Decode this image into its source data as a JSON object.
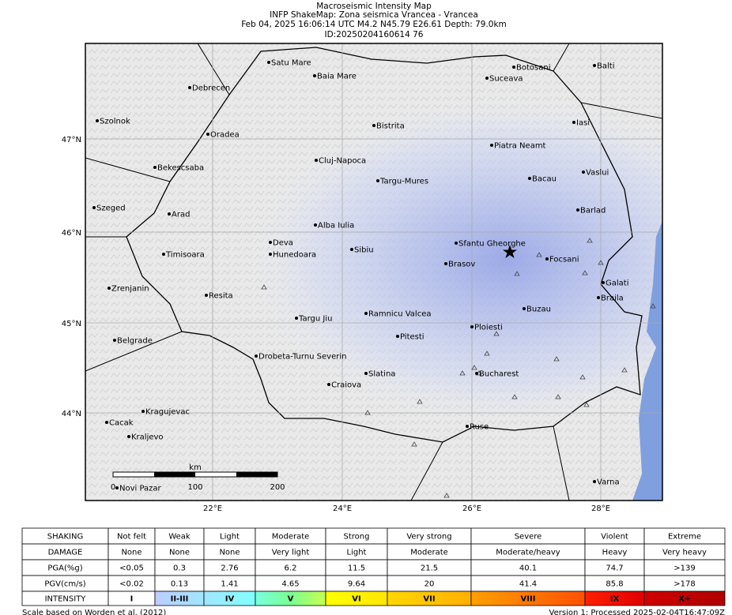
{
  "header": {
    "lines": [
      "Macroseismic Intensity Map",
      "INFP ShakeMap: Zona seismica Vrancea - Vrancea",
      "Feb 04, 2025 16:06:14 UTC M4.2 N45.79 E26.61 Depth: 79.0km",
      "ID:20250204160614 76"
    ]
  },
  "map": {
    "lat_labels": [
      "47°N",
      "46°N",
      "45°N",
      "44°N"
    ],
    "lon_labels": [
      "22°E",
      "24°E",
      "26°E",
      "28°E"
    ],
    "cities": [
      "Satu Mare",
      "Baia Mare",
      "Botosani",
      "Balti",
      "Debrecen",
      "Suceava",
      "Szolnok",
      "Bistrita",
      "Iasi",
      "Oradea",
      "Piatra Neamt",
      "Bekescsaba",
      "Cluj-Napoca",
      "Vaslui",
      "Targu-Mures",
      "Bacau",
      "Szeged",
      "Arad",
      "Barlad",
      "Alba Iulia",
      "Deva",
      "Sibiu",
      "Sfantu Gheorghe",
      "Timisoara",
      "Hunedoara",
      "Focsani",
      "Brasov",
      "Galati",
      "Zrenjanin",
      "Resita",
      "Braila",
      "Buzau",
      "Ramnicu Valcea",
      "Targu Jiu",
      "Ploiesti",
      "Pitesti",
      "Belgrade",
      "Drobeta-Turnu Severin",
      "Bucharest",
      "Slatina",
      "Craiova",
      "Kragujevac",
      "Cacak",
      "Ruse",
      "Kraljevo",
      "Novi Pazar",
      "Varna"
    ],
    "scale": {
      "unit": "km",
      "ticks": [
        "0",
        "100",
        "200"
      ]
    }
  },
  "legend": {
    "rows": [
      [
        "SHAKING",
        "Not felt",
        "Weak",
        "Light",
        "Moderate",
        "Strong",
        "Very strong",
        "Severe",
        "Violent",
        "Extreme"
      ],
      [
        "DAMAGE",
        "None",
        "None",
        "None",
        "Very light",
        "Light",
        "Moderate",
        "Moderate/heavy",
        "Heavy",
        "Very heavy"
      ],
      [
        "PGA(%g)",
        "<0.05",
        "0.3",
        "2.76",
        "6.2",
        "11.5",
        "21.5",
        "40.1",
        "74.7",
        ">139"
      ],
      [
        "PGV(cm/s)",
        "<0.02",
        "0.13",
        "1.41",
        "4.65",
        "9.64",
        "20",
        "41.4",
        "85.8",
        ">178"
      ],
      [
        "INTENSITY",
        "I",
        "II-III",
        "IV",
        "V",
        "VI",
        "VII",
        "VIII",
        "IX",
        "X+"
      ]
    ]
  },
  "footer": {
    "left": "Scale based on Worden et al. (2012)",
    "right": "Version 1: Processed 2025-02-04T16:47:09Z"
  }
}
